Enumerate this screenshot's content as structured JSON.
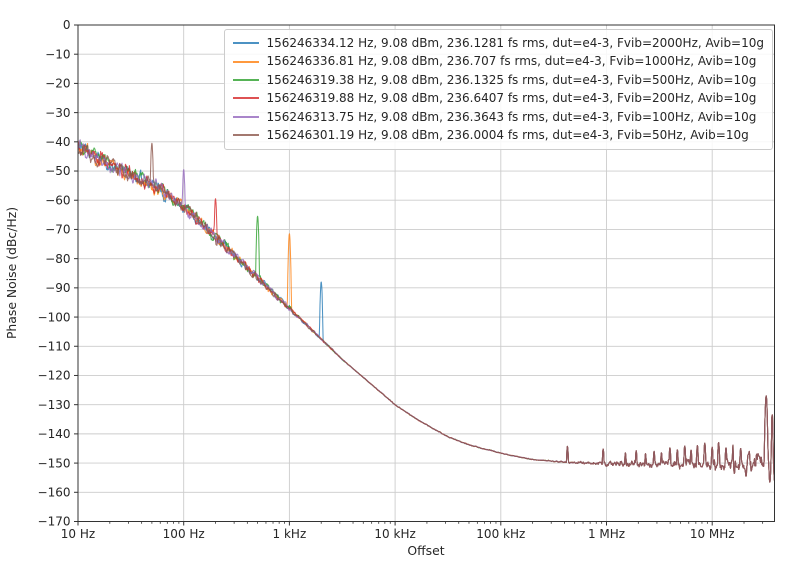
{
  "figure": {
    "kind": "matplotlib-style phase noise plot",
    "background": "#ffffff",
    "grid_color": "#cccccc",
    "spine_color": "#333333",
    "text_color": "#262626",
    "legend_border_color": "#cccccc"
  },
  "chart_data": {
    "type": "line",
    "title": "",
    "xlabel": "Offset",
    "ylabel": "Phase Noise (dBc/Hz)",
    "x_scale": "log",
    "xlim_hz": [
      10,
      39000000
    ],
    "ylim": [
      -170,
      0
    ],
    "grid": true,
    "legend_location": "upper right",
    "x_ticks": [
      {
        "hz": 10,
        "label": "10 Hz"
      },
      {
        "hz": 100,
        "label": "100 Hz"
      },
      {
        "hz": 1000,
        "label": "1 kHz"
      },
      {
        "hz": 10000,
        "label": "10 kHz"
      },
      {
        "hz": 100000,
        "label": "100 kHz"
      },
      {
        "hz": 1000000,
        "label": "1 MHz"
      },
      {
        "hz": 10000000,
        "label": "10 MHz"
      }
    ],
    "y_ticks": [
      {
        "value": 0,
        "label": "0"
      },
      {
        "value": -10,
        "label": "−10"
      },
      {
        "value": -20,
        "label": "−20"
      },
      {
        "value": -30,
        "label": "−30"
      },
      {
        "value": -40,
        "label": "−40"
      },
      {
        "value": -50,
        "label": "−50"
      },
      {
        "value": -60,
        "label": "−60"
      },
      {
        "value": -70,
        "label": "−70"
      },
      {
        "value": -80,
        "label": "−80"
      },
      {
        "value": -90,
        "label": "−90"
      },
      {
        "value": -100,
        "label": "−100"
      },
      {
        "value": -110,
        "label": "−110"
      },
      {
        "value": -120,
        "label": "−120"
      },
      {
        "value": -130,
        "label": "−130"
      },
      {
        "value": -140,
        "label": "−140"
      },
      {
        "value": -150,
        "label": "−150"
      },
      {
        "value": -160,
        "label": "−160"
      },
      {
        "value": -170,
        "label": "−170"
      }
    ],
    "series": [
      {
        "label": "156246334.12 Hz, 9.08 dBm, 236.1281 fs rms, dut=e4-3, Fvib=2000Hz, Avib=10g",
        "color": "#1f77b4",
        "fvib_hz": 2000,
        "vib_spur_peak_dbchz": -88.0
      },
      {
        "label": "156246336.81 Hz, 9.08 dBm, 236.707 fs rms, dut=e4-3, Fvib=1000Hz, Avib=10g",
        "color": "#ff7f0e",
        "fvib_hz": 1000,
        "vib_spur_peak_dbchz": -71.5
      },
      {
        "label": "156246319.38 Hz, 9.08 dBm, 236.1325 fs rms, dut=e4-3, Fvib=500Hz, Avib=10g",
        "color": "#2ca02c",
        "fvib_hz": 500,
        "vib_spur_peak_dbchz": -65.5
      },
      {
        "label": "156246319.88 Hz, 9.08 dBm, 236.6407 fs rms, dut=e4-3, Fvib=200Hz, Avib=10g",
        "color": "#d62728",
        "fvib_hz": 200,
        "vib_spur_peak_dbchz": -59.5
      },
      {
        "label": "156246313.75 Hz, 9.08 dBm, 236.3643 fs rms, dut=e4-3, Fvib=100Hz, Avib=10g",
        "color": "#9467bd",
        "fvib_hz": 100,
        "vib_spur_peak_dbchz": -49.5
      },
      {
        "label": "156246301.19 Hz, 9.08 dBm, 236.0004 fs rms, dut=e4-3, Fvib=50Hz, Avib=10g",
        "color": "#8c564b",
        "fvib_hz": 50,
        "vib_spur_peak_dbchz": -40.5
      }
    ],
    "mean_curve_hz_dbchz": [
      [
        10,
        -41.5
      ],
      [
        20,
        -47.5
      ],
      [
        50,
        -54.5
      ],
      [
        100,
        -62
      ],
      [
        316,
        -79.5
      ],
      [
        1000,
        -97
      ],
      [
        3160,
        -114.5
      ],
      [
        10000,
        -130
      ],
      [
        16000,
        -135
      ],
      [
        31600,
        -141
      ],
      [
        50000,
        -143.8
      ],
      [
        100000,
        -146.6
      ],
      [
        200000,
        -148.8
      ],
      [
        500000,
        -149.9
      ],
      [
        1000000,
        -150.3
      ],
      [
        3000000,
        -150.4
      ],
      [
        10000000,
        -150.5
      ],
      [
        39000000,
        -150.7
      ]
    ],
    "noise_floor_dbchz": -150.3,
    "hf_spurs_hz_dbchz": [
      [
        427000,
        -144.3
      ],
      [
        930000,
        -145.2
      ],
      [
        1510000,
        -146.5
      ],
      [
        1910000,
        -145.8
      ],
      [
        2340000,
        -146.8
      ],
      [
        2820000,
        -146.0
      ],
      [
        3310000,
        -146.5
      ],
      [
        3980000,
        -144.8
      ],
      [
        4680000,
        -145.5
      ],
      [
        5500000,
        -144.2
      ],
      [
        6310000,
        -145.6
      ],
      [
        7240000,
        -144.0
      ],
      [
        8510000,
        -143.2
      ],
      [
        10000000,
        -144.6
      ],
      [
        11500000,
        -143.0
      ],
      [
        13500000,
        -144.8
      ],
      [
        15800000,
        -143.6
      ],
      [
        18600000,
        -145.0
      ],
      [
        22400000,
        -146.0
      ],
      [
        26300000,
        -147.0
      ],
      [
        32400000,
        -127.0
      ],
      [
        37000000,
        -133.5
      ]
    ],
    "hf_dips_hz_dbchz": [
      [
        16200000,
        -153.5
      ],
      [
        20900000,
        -154.5
      ],
      [
        35100000,
        -156.5
      ],
      [
        38900000,
        -156.0
      ]
    ],
    "render": {
      "seeds": [
        11,
        22,
        33,
        44,
        55,
        66
      ],
      "shared_seed": 99,
      "line_opacity": 0.8,
      "noise_amp_low_lf_db": [
        [
          1.0,
          3.3
        ],
        [
          1.8,
          3.0
        ],
        [
          2.3,
          2.4
        ],
        [
          2.8,
          1.5
        ],
        [
          3.1,
          0.8
        ],
        [
          3.4,
          0.35
        ],
        [
          3.6,
          0.12
        ],
        [
          7.6,
          0.0
        ]
      ],
      "noise_amp_high_lf_db": [
        [
          1.0,
          0.0
        ],
        [
          3.6,
          0.0
        ],
        [
          3.9,
          0.12
        ],
        [
          5.45,
          0.12
        ],
        [
          5.65,
          0.35
        ],
        [
          5.9,
          0.6
        ],
        [
          6.1,
          0.9
        ],
        [
          6.4,
          1.3
        ],
        [
          6.8,
          1.7
        ],
        [
          7.1,
          2.0
        ],
        [
          7.35,
          2.6
        ],
        [
          7.59,
          3.0
        ]
      ]
    }
  }
}
